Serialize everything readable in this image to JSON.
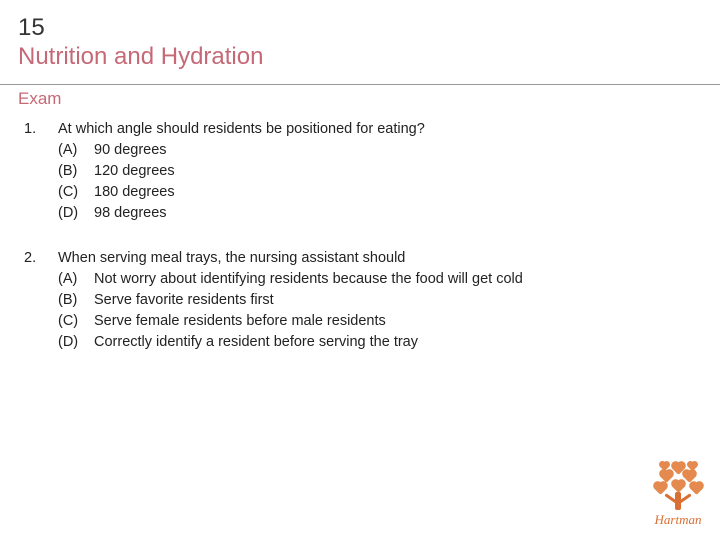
{
  "chapter": {
    "number": "15",
    "title": "Nutrition and Hydration"
  },
  "section_label": "Exam",
  "questions": [
    {
      "number": "1.",
      "stem": "At which angle should residents be positioned for eating?",
      "options": [
        {
          "letter": "(A)",
          "text": "90 degrees"
        },
        {
          "letter": "(B)",
          "text": "120 degrees"
        },
        {
          "letter": "(C)",
          "text": "180 degrees"
        },
        {
          "letter": "(D)",
          "text": "98 degrees"
        }
      ]
    },
    {
      "number": "2.",
      "stem": "When serving meal trays, the nursing assistant should",
      "options": [
        {
          "letter": "(A)",
          "text": "Not worry about identifying residents because the food will get cold"
        },
        {
          "letter": "(B)",
          "text": "Serve favorite residents first"
        },
        {
          "letter": "(C)",
          "text": "Serve female residents before male residents"
        },
        {
          "letter": "(D)",
          "text": "Correctly identify a resident before serving the tray"
        }
      ]
    }
  ],
  "brand": "Hartman",
  "colors": {
    "accent": "#c66976",
    "text": "#222222",
    "logo_orange": "#d96f32",
    "heart_fill": "#e48a4f"
  },
  "typography": {
    "header_fontsize_pt": 18,
    "section_fontsize_pt": 13,
    "body_fontsize_pt": 11,
    "brand_fontfamily": "Georgia italic"
  }
}
